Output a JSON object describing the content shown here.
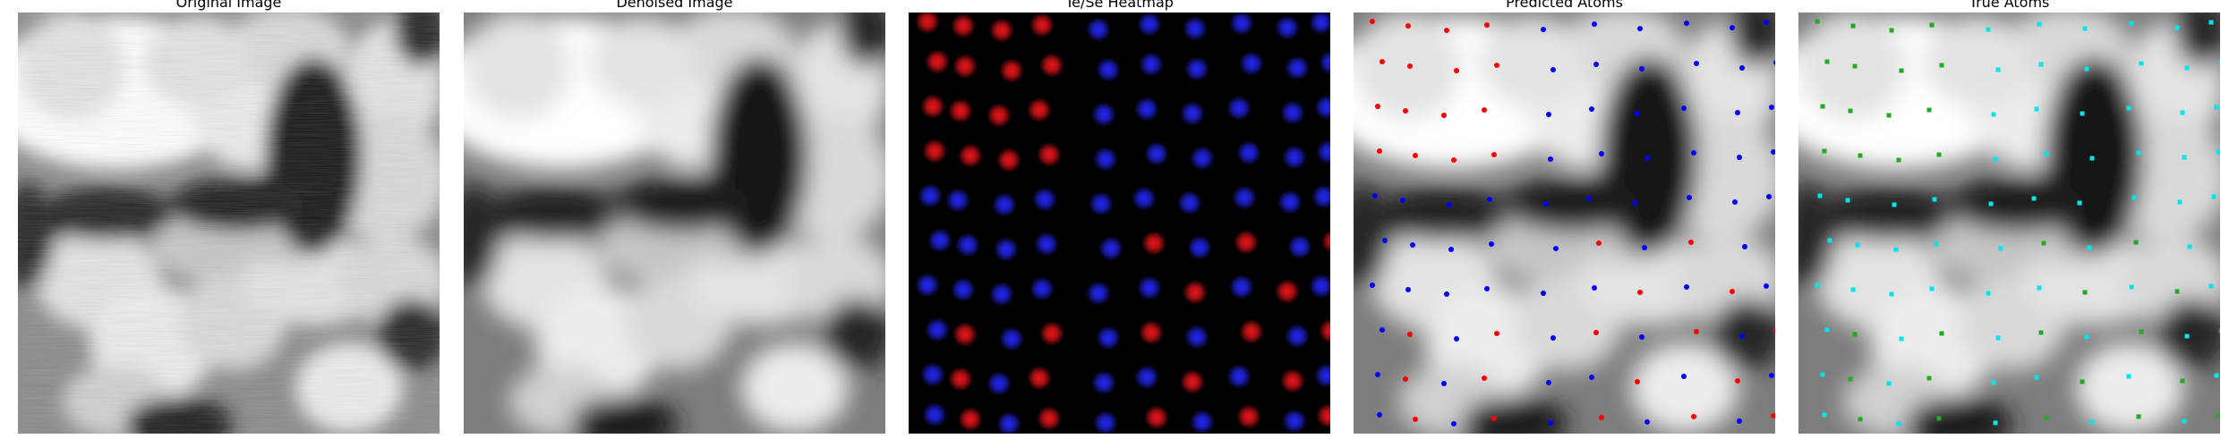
{
  "panels": [
    {
      "title": "Original Image",
      "kind": "original"
    },
    {
      "title": "Denoised Image",
      "kind": "denoised"
    },
    {
      "title": "Te/Se Heatmap",
      "kind": "heatmap"
    },
    {
      "title": "Predicted Atoms",
      "kind": "predicted"
    },
    {
      "title": "True Atoms",
      "kind": "true"
    }
  ],
  "colors": {
    "te_heatmap": "#e8151a",
    "se_heatmap": "#2226f0",
    "predicted_te": "#ff0000",
    "predicted_se": "#0000ff",
    "true_te": "#22aa22",
    "true_se": "#00e5ee"
  },
  "icons": {
    "predicted_marker": "dot",
    "true_marker": "square"
  }
}
